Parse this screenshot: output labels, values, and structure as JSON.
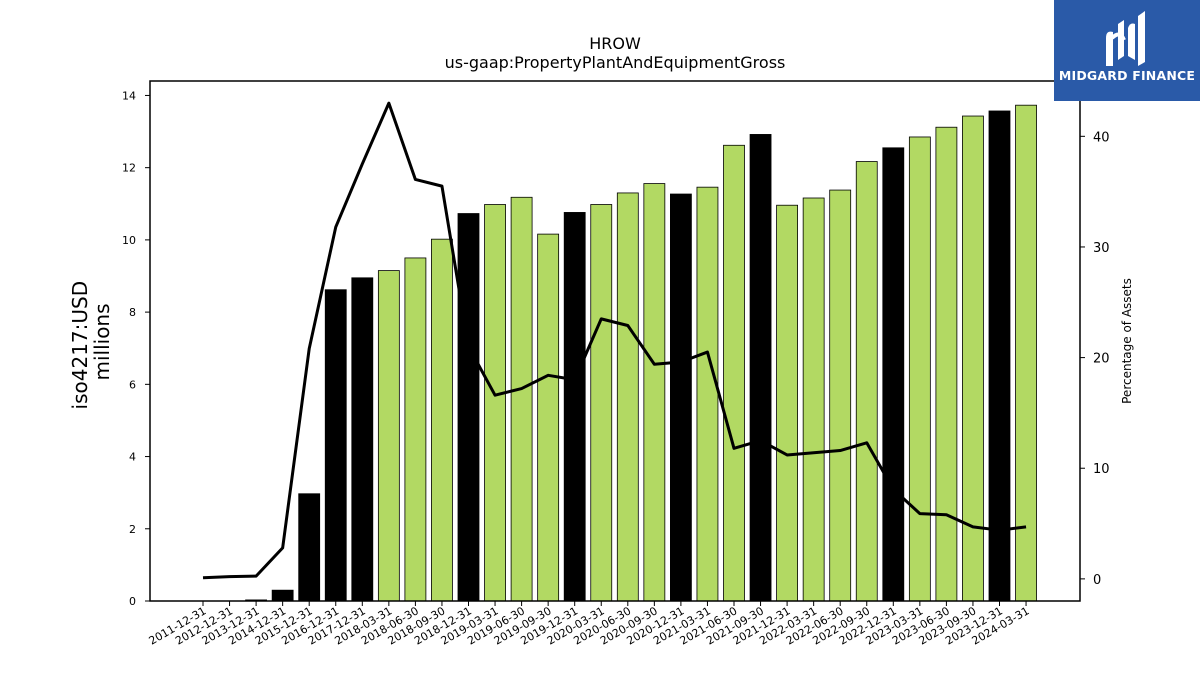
{
  "brand": {
    "name": "MIDGARD FINANCE",
    "color": "#2a5aa8"
  },
  "chart_data": {
    "type": "bar",
    "title": "HROW",
    "subtitle": "us-gaap:PropertyPlantAndEquipmentGross",
    "ylabel": "iso4217:USD\nmillions",
    "y2label": "Percentage of Assets",
    "ylim": [
      0,
      14.4
    ],
    "y2lim": [
      -2,
      45
    ],
    "yticks": [
      0,
      2,
      4,
      6,
      8,
      10,
      12,
      14
    ],
    "y2ticks": [
      0,
      10,
      20,
      30,
      40
    ],
    "categories": [
      "2011-12-31",
      "2012-12-31",
      "2013-12-31",
      "2014-12-31",
      "2015-12-31",
      "2016-12-31",
      "2017-12-31",
      "2018-03-31",
      "2018-06-30",
      "2018-09-30",
      "2018-12-31",
      "2019-03-31",
      "2019-06-30",
      "2019-09-30",
      "2019-12-31",
      "2020-03-31",
      "2020-06-30",
      "2020-09-30",
      "2020-12-31",
      "2021-03-31",
      "2021-06-30",
      "2021-09-30",
      "2021-12-31",
      "2022-03-31",
      "2022-06-30",
      "2022-09-30",
      "2022-12-31",
      "2023-03-31",
      "2023-06-30",
      "2023-09-30",
      "2023-12-31",
      "2024-03-31"
    ],
    "series": [
      {
        "type": "bar",
        "values": [
          0.0,
          0.0,
          0.03,
          0.3,
          2.97,
          8.62,
          8.95,
          9.15,
          9.5,
          10.02,
          10.73,
          10.98,
          11.18,
          10.16,
          10.76,
          10.98,
          11.3,
          11.56,
          11.27,
          11.46,
          12.62,
          12.92,
          10.96,
          11.16,
          11.38,
          12.17,
          12.55,
          12.85,
          13.12,
          13.43,
          13.57,
          13.73
        ],
        "colors": [
          "#000000",
          "#000000",
          "#000000",
          "#000000",
          "#000000",
          "#000000",
          "#000000",
          "#b2d963",
          "#b2d963",
          "#b2d963",
          "#000000",
          "#b2d963",
          "#b2d963",
          "#b2d963",
          "#000000",
          "#b2d963",
          "#b2d963",
          "#b2d963",
          "#000000",
          "#b2d963",
          "#b2d963",
          "#000000",
          "#b2d963",
          "#b2d963",
          "#b2d963",
          "#b2d963",
          "#000000",
          "#b2d963",
          "#b2d963",
          "#b2d963",
          "#000000",
          "#b2d963"
        ]
      },
      {
        "type": "line",
        "axis": "right",
        "color": "#000000",
        "values": [
          0.1,
          0.2,
          0.25,
          2.8,
          20.8,
          31.8,
          37.5,
          43.0,
          36.1,
          35.5,
          21.0,
          16.6,
          17.2,
          18.4,
          18.0,
          23.5,
          22.9,
          19.4,
          19.6,
          20.5,
          11.8,
          12.5,
          11.2,
          11.4,
          11.6,
          12.3,
          8.1,
          5.9,
          5.8,
          4.7,
          4.4,
          4.7
        ]
      }
    ],
    "grid": false,
    "legend": "none"
  }
}
